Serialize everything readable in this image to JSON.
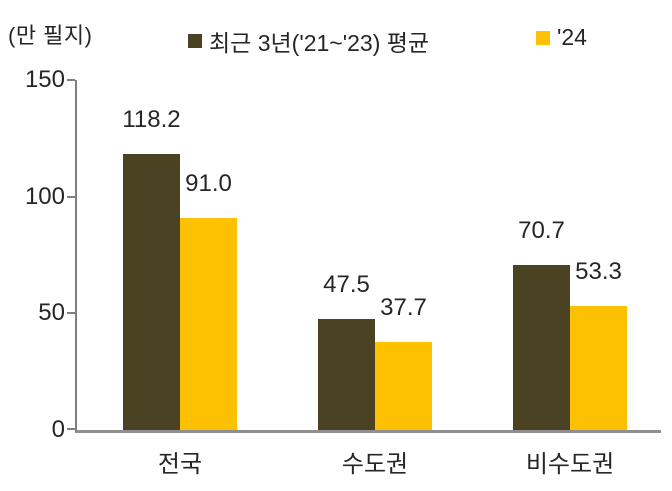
{
  "chart_data": {
    "type": "bar",
    "title": "",
    "unit_label": "(만 필지)",
    "categories": [
      "전국",
      "수도권",
      "비수도권"
    ],
    "series": [
      {
        "name": "최근 3년('21~'23) 평균",
        "color": "#4a4223",
        "values": [
          118.2,
          47.5,
          70.7
        ]
      },
      {
        "name": "'24",
        "color": "#fdc101",
        "values": [
          91.0,
          37.7,
          53.3
        ]
      }
    ],
    "ylim": [
      0,
      150
    ],
    "yticks": [
      0,
      50,
      100,
      150
    ],
    "grid": false,
    "legend_position": "top",
    "value_labels_shown": true,
    "value_label_decimals": 1,
    "colors": {
      "axis_y": "#7f7f7f",
      "axis_x": "#8f8f8f",
      "text": "#262626"
    }
  }
}
